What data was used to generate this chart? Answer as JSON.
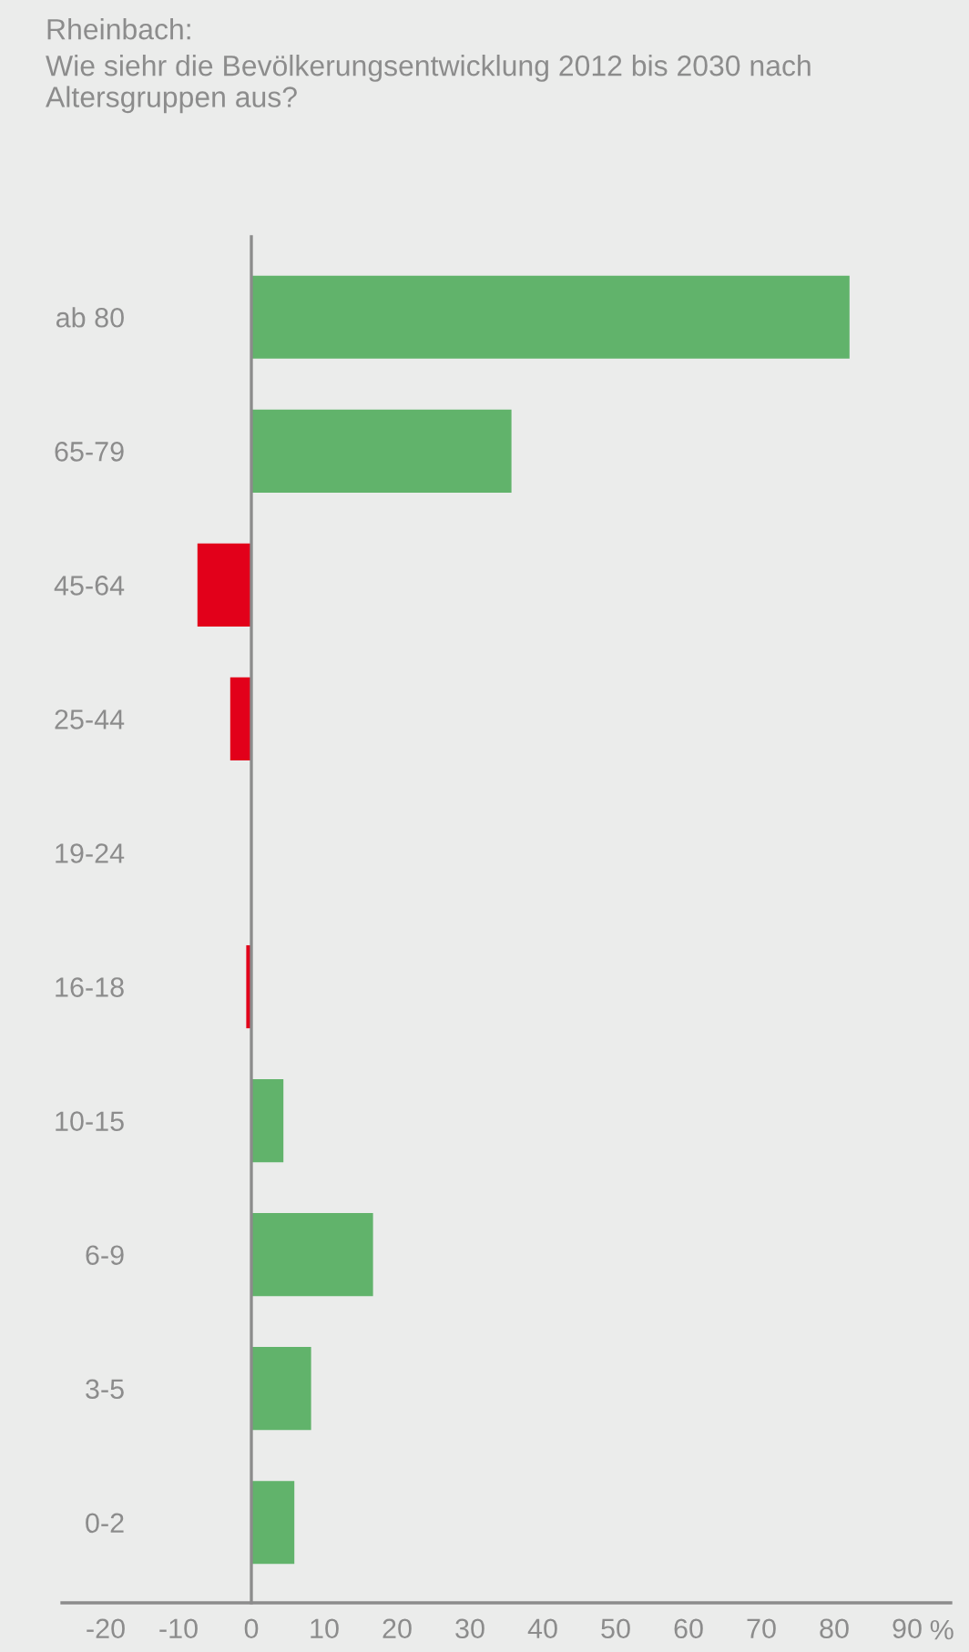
{
  "chart_data": {
    "type": "bar",
    "orientation": "horizontal",
    "title": "Rheinbach:",
    "subtitle": "Wie siehr die Bevölkerungsentwicklung 2012 bis 2030 nach Altersgruppen aus?",
    "xlabel": "%",
    "categories": [
      "ab 80",
      "65-79",
      "45-64",
      "25-44",
      "19-24",
      "16-18",
      "10-15",
      "6-9",
      "3-5",
      "0-2"
    ],
    "values": [
      82.1,
      35.7,
      -7.4,
      -2.9,
      0,
      -0.7,
      4.4,
      16.7,
      8.2,
      5.9
    ],
    "colors": [
      "#61b36b",
      "#61b36b",
      "#e2001a",
      "#e2001a",
      "#61b36b",
      "#e2001a",
      "#61b36b",
      "#61b36b",
      "#61b36b",
      "#61b36b"
    ],
    "xlim": [
      -26,
      96
    ],
    "xticks": [
      -20,
      -10,
      0,
      10,
      20,
      30,
      40,
      50,
      60,
      70,
      80,
      90
    ],
    "legend": false
  }
}
